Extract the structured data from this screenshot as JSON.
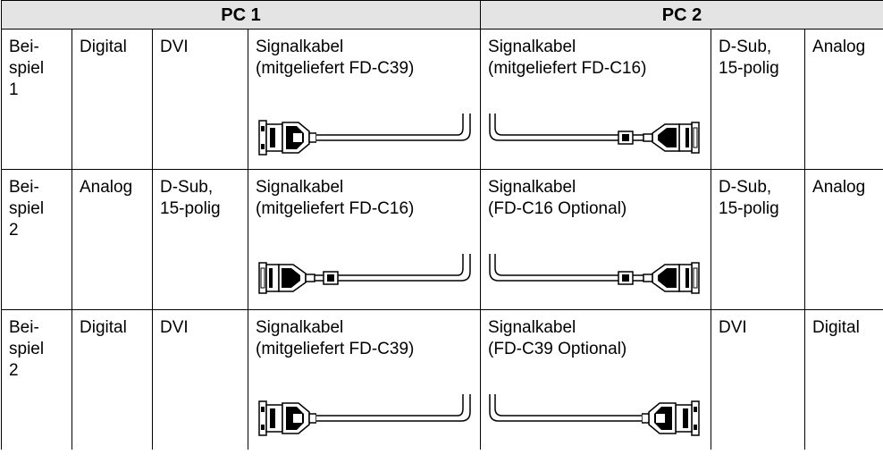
{
  "table": {
    "header": [
      "PC 1",
      "PC 2"
    ],
    "rows": [
      [
        "Bei-\nspiel\n1",
        "Digital",
        "DVI",
        "Signalkabel\n(mitgeliefert FD-C39)",
        "Signalkabel\n(mitgeliefert FD-C16)",
        "D-Sub,\n15-polig",
        "Analog"
      ],
      [
        "Bei-\nspiel\n2",
        "Analog",
        "D-Sub,\n15-polig",
        "Signalkabel\n(mitgeliefert FD-C16)",
        "Signalkabel\n(FD-C16 Optional)",
        "D-Sub,\n15-polig",
        "Analog"
      ],
      [
        "Bei-\nspiel\n2",
        "Digital",
        "DVI",
        "Signalkabel\n(mitgeliefert FD-C39)",
        "Signalkabel\n(FD-C39 Optional)",
        "DVI",
        "Digital"
      ]
    ]
  }
}
